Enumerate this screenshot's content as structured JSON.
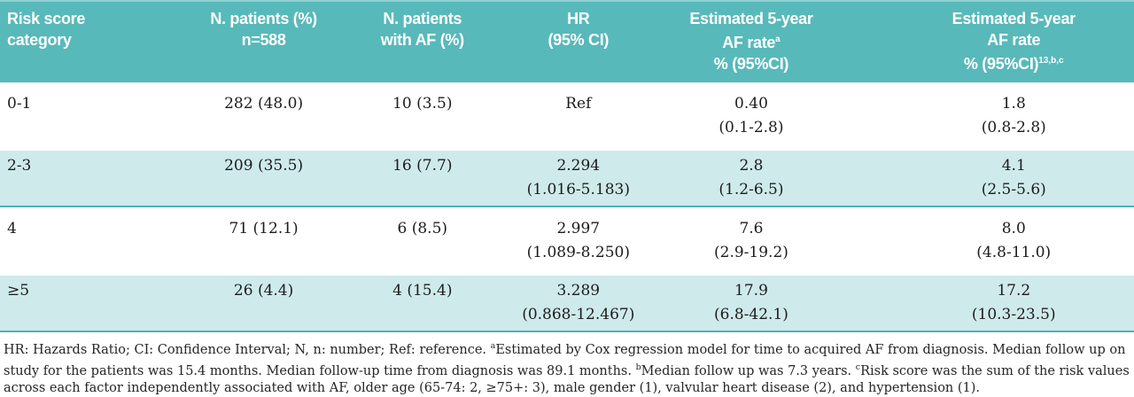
{
  "colors": {
    "header_bg": "#58b9ba",
    "header_top_line": "#8ed0d1",
    "shaded_row_bg": "#cfeaeb",
    "row_divider": "#4db1b3",
    "header_text": "#ffffff",
    "body_text": "#1c1c1c"
  },
  "header": {
    "col1": {
      "line1": "Risk score",
      "line2": "category"
    },
    "col2": {
      "line1": "N. patients (%)",
      "line2": "n=588"
    },
    "col3": {
      "line1": "N. patients",
      "line2": "with AF (%)"
    },
    "col4": {
      "line1": "HR",
      "line2": "(95% CI)"
    },
    "col5": {
      "line1": "Estimated 5-year",
      "line2": "AF rate",
      "line2_sup": "a",
      "line3": "% (95%CI)"
    },
    "col6": {
      "line1": "Estimated 5-year",
      "line2": "AF rate",
      "line3": "% (95%CI)",
      "line3_sup": "13,b,c"
    }
  },
  "rows": [
    {
      "category": "0-1",
      "n_patients": "282 (48.0)",
      "n_af": "10 (3.5)",
      "hr": "Ref",
      "hr_ci": "",
      "rate_a": "0.40",
      "rate_a_ci": "(0.1-2.8)",
      "rate_b": "1.8",
      "rate_b_ci": "(0.8-2.8)"
    },
    {
      "category": "2-3",
      "n_patients": "209 (35.5)",
      "n_af": "16 (7.7)",
      "hr": "2.294",
      "hr_ci": "(1.016-5.183)",
      "rate_a": "2.8",
      "rate_a_ci": "(1.2-6.5)",
      "rate_b": "4.1",
      "rate_b_ci": "(2.5-5.6)"
    },
    {
      "category": "4",
      "n_patients": "71 (12.1)",
      "n_af": "6 (8.5)",
      "hr": "2.997",
      "hr_ci": "(1.089-8.250)",
      "rate_a": "7.6",
      "rate_a_ci": "(2.9-19.2)",
      "rate_b": "8.0",
      "rate_b_ci": "(4.8-11.0)"
    },
    {
      "category": "≥5",
      "n_patients": "26 (4.4)",
      "n_af": "4 (15.4)",
      "hr": "3.289",
      "hr_ci": "(0.868-12.467)",
      "rate_a": "17.9",
      "rate_a_ci": "(6.8-42.1)",
      "rate_b": "17.2",
      "rate_b_ci": "(10.3-23.5)"
    }
  ],
  "footnote": {
    "part1": "HR: Hazards Ratio; CI: Confidence Interval; N, n: number; Ref: reference. ",
    "sup_a": "a",
    "part2": "Estimated by Cox regression model for time to acquired AF from diagnosis. Median follow up on study for the patients was 15.4 months. Median follow-up time from diagnosis was 89.1 months. ",
    "sup_b": "b",
    "part3": "Median follow up was 7.3 years. ",
    "sup_c": "c",
    "part4": "Risk score was the sum of the risk values across each factor independently associated with AF, older age (65-74: 2, ≥75+: 3), male gender (1), valvular heart disease (2), and hypertension (1)."
  }
}
